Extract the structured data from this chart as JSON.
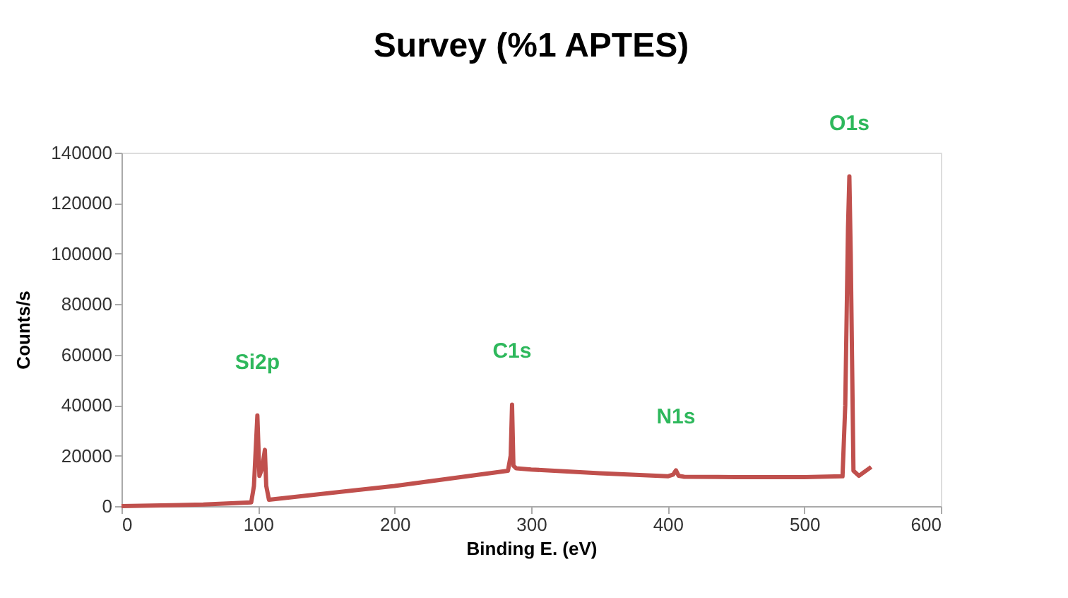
{
  "chart_data": {
    "type": "line",
    "title": "Survey (%1 APTES)",
    "xlabel": "Binding E. (eV)",
    "ylabel": "Counts/s",
    "series": [
      {
        "color": "#c0504d",
        "x": [
          0,
          60,
          95,
          97,
          99.5,
          101,
          103,
          105,
          106,
          108,
          200,
          283,
          285,
          286,
          287,
          289,
          300,
          350,
          400,
          404,
          406,
          408,
          412,
          450,
          500,
          528,
          530,
          532,
          533,
          534,
          536,
          540,
          549
        ],
        "values": [
          0,
          600,
          1500,
          8000,
          35900,
          12000,
          15000,
          22300,
          8000,
          2500,
          8000,
          14000,
          20000,
          40200,
          16000,
          15000,
          14500,
          13000,
          11800,
          12500,
          14200,
          12000,
          11600,
          11500,
          11500,
          11800,
          40000,
          110000,
          130600,
          100000,
          14000,
          12000,
          15500
        ]
      }
    ],
    "xlim": [
      0,
      600
    ],
    "xticks": [
      0,
      100,
      200,
      300,
      400,
      500,
      600
    ],
    "ylim": [
      0,
      140000
    ],
    "yticks": [
      0,
      20000,
      40000,
      60000,
      80000,
      100000,
      120000,
      140000
    ],
    "grid": false,
    "marker": "none",
    "line_style": "solid",
    "annotations": [
      {
        "text": "Si2p",
        "x": 99.5,
        "y": 35900
      },
      {
        "text": "C1s",
        "x": 286,
        "y": 40200
      },
      {
        "text": "N1s",
        "x": 406,
        "y": 14200
      },
      {
        "text": "O1s",
        "x": 533,
        "y": 130600
      }
    ]
  }
}
